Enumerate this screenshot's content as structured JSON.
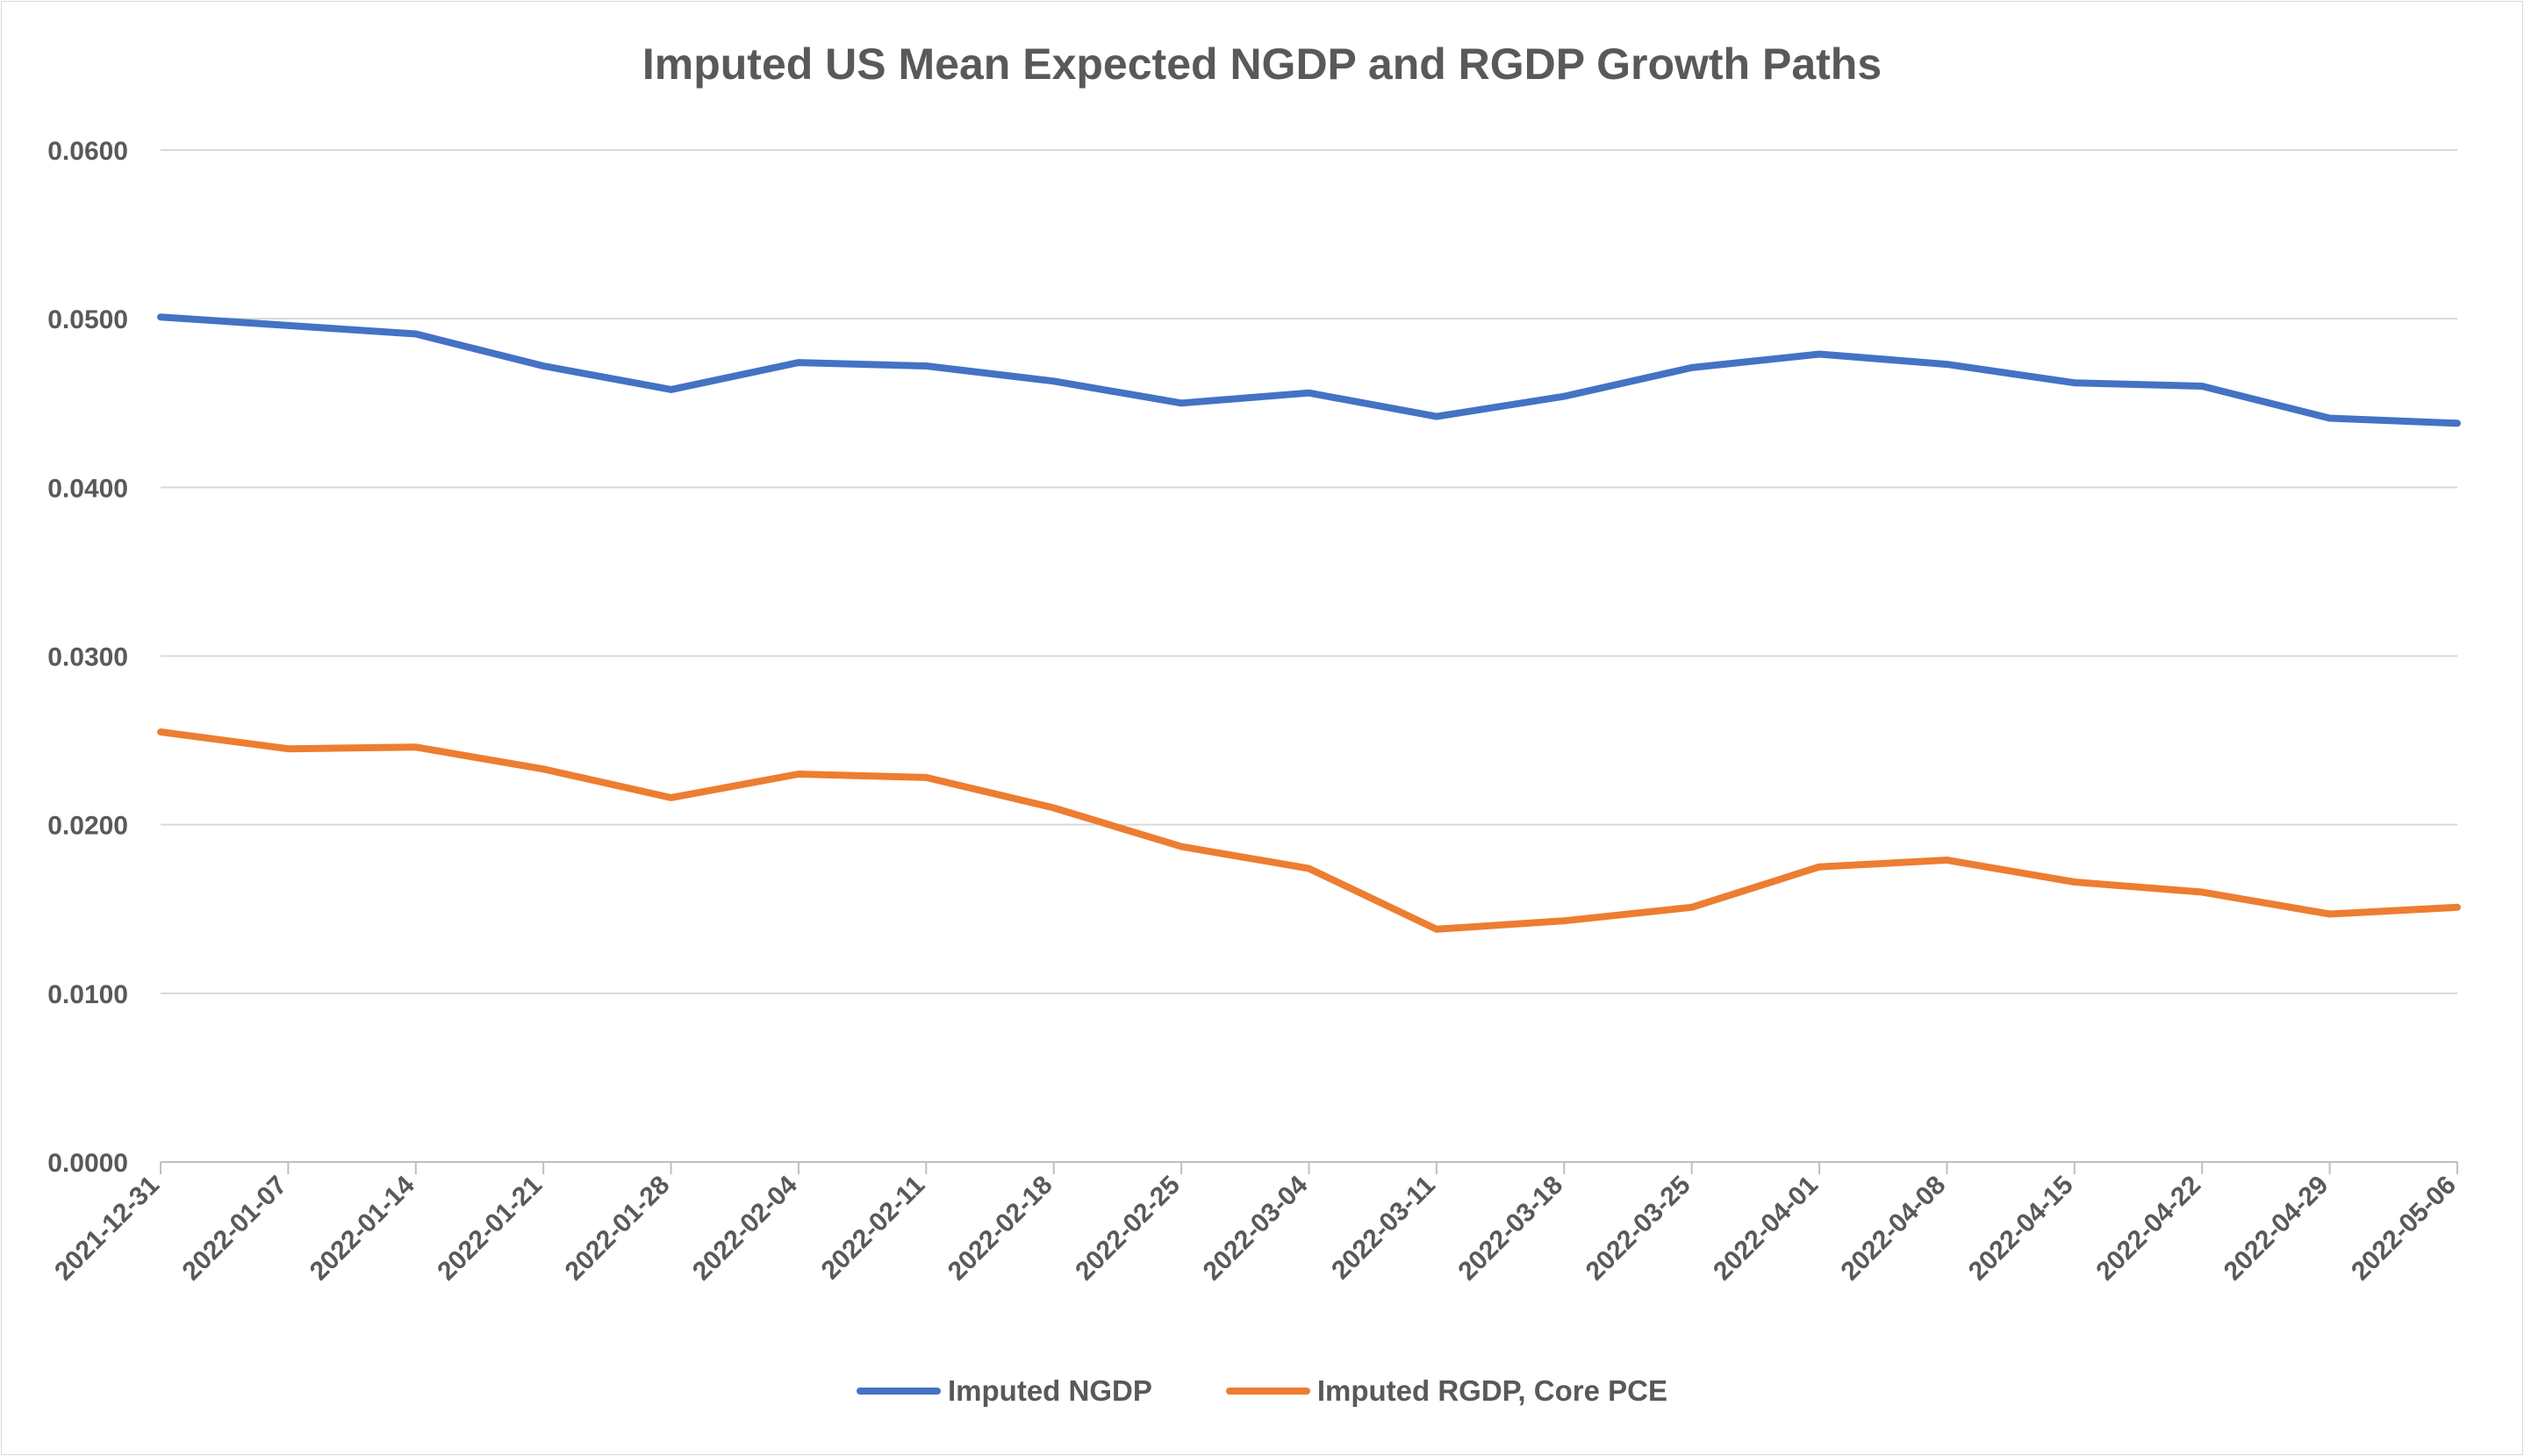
{
  "chart_data": {
    "type": "line",
    "title": "Imputed US Mean Expected NGDP and RGDP Growth Paths",
    "xlabel": "",
    "ylabel": "",
    "categories": [
      "2021-12-31",
      "2022-01-07",
      "2022-01-14",
      "2022-01-21",
      "2022-01-28",
      "2022-02-04",
      "2022-02-11",
      "2022-02-18",
      "2022-02-25",
      "2022-03-04",
      "2022-03-11",
      "2022-03-18",
      "2022-03-25",
      "2022-04-01",
      "2022-04-08",
      "2022-04-15",
      "2022-04-22",
      "2022-04-29",
      "2022-05-06"
    ],
    "y_ticks": [
      "0.0000",
      "0.0100",
      "0.0200",
      "0.0300",
      "0.0400",
      "0.0500",
      "0.0600"
    ],
    "ylim": [
      0,
      0.06
    ],
    "grid": true,
    "legend_position": "bottom",
    "series": [
      {
        "name": "Imputed NGDP",
        "color": "#4472C4",
        "values": [
          0.0501,
          0.0496,
          0.0491,
          0.0472,
          0.0458,
          0.0474,
          0.0472,
          0.0463,
          0.045,
          0.0456,
          0.0442,
          0.0454,
          0.0471,
          0.0479,
          0.0473,
          0.0462,
          0.046,
          0.0441,
          0.0438
        ]
      },
      {
        "name": "Imputed RGDP, Core PCE",
        "color": "#ED7D31",
        "values": [
          0.0255,
          0.0245,
          0.0246,
          0.0233,
          0.0216,
          0.023,
          0.0228,
          0.021,
          0.0187,
          0.0174,
          0.0138,
          0.0143,
          0.0151,
          0.0175,
          0.0179,
          0.0166,
          0.016,
          0.0147,
          0.0151
        ]
      }
    ]
  }
}
